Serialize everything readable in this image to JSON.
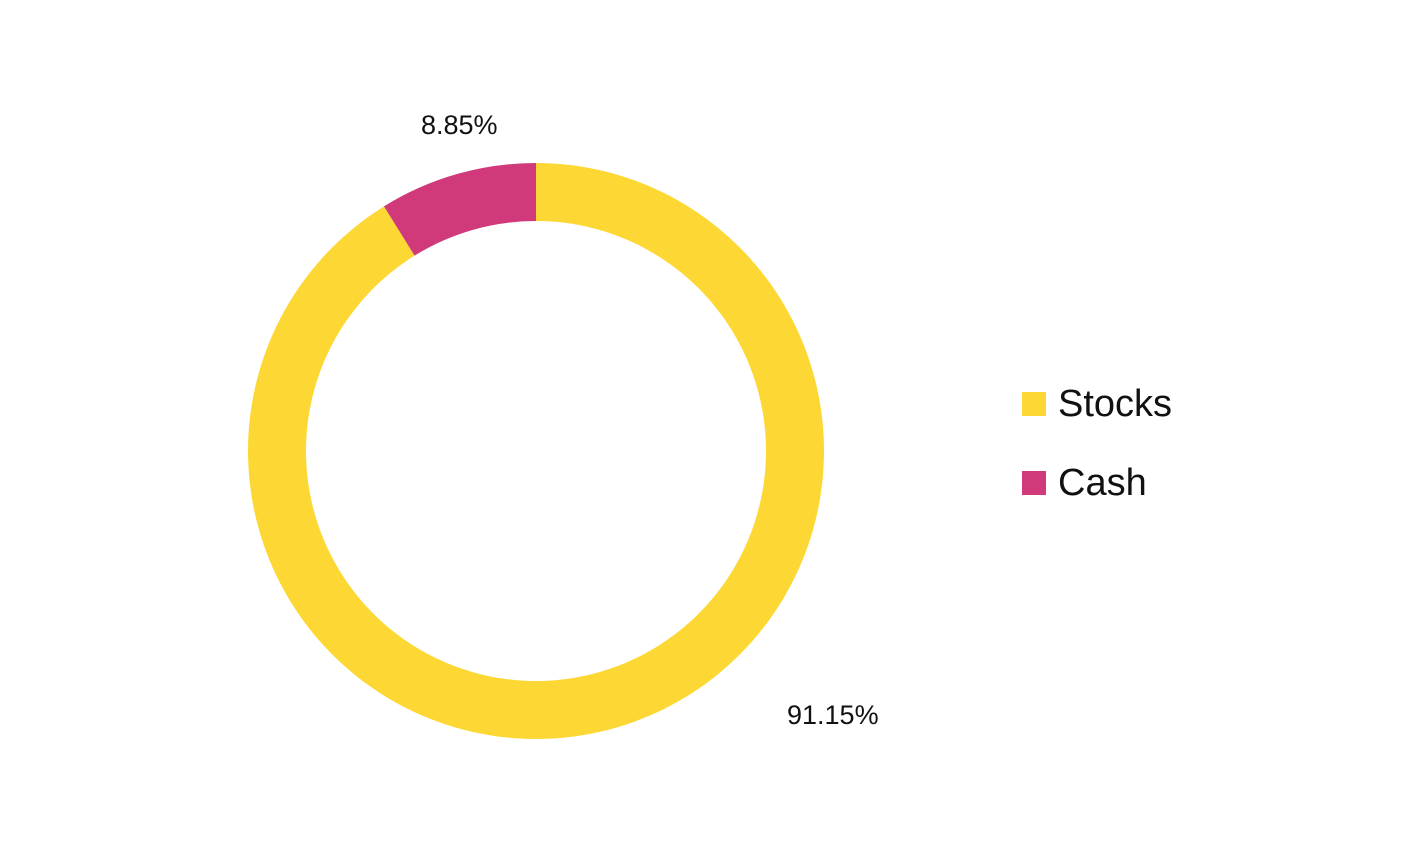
{
  "chart_data": {
    "type": "pie",
    "variant": "donut",
    "categories": [
      "Stocks",
      "Cash"
    ],
    "values": [
      91.15,
      8.85
    ],
    "data_labels": [
      "91.15%",
      "8.85%"
    ],
    "colors": [
      "#FDD835",
      "#D03A7A"
    ],
    "legend": {
      "placement": "right",
      "entries": [
        "Stocks",
        "Cash"
      ]
    },
    "title": "",
    "start_angle_deg": 0,
    "direction": "clockwise"
  }
}
